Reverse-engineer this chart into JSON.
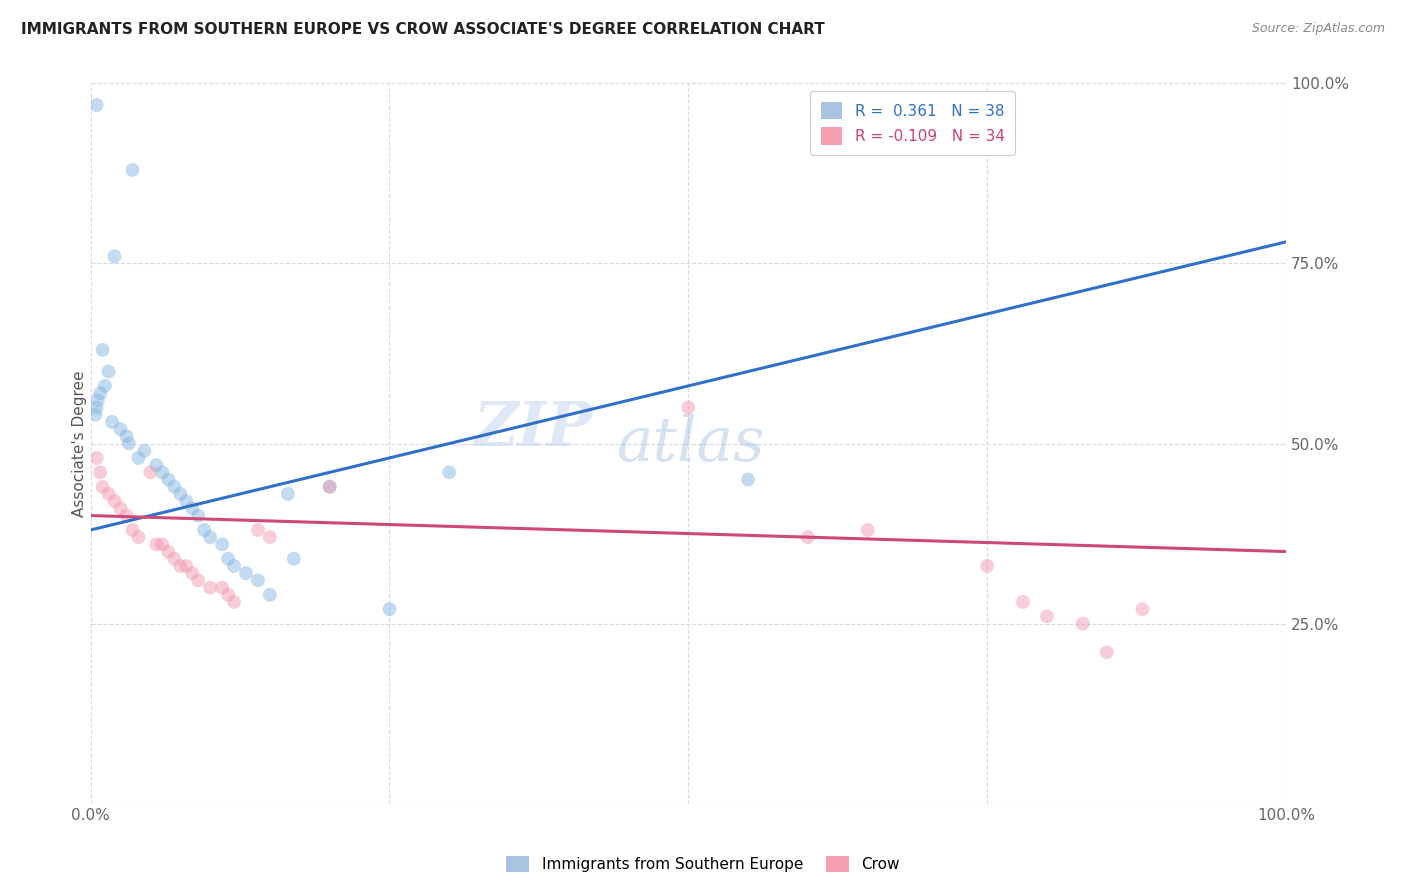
{
  "title": "IMMIGRANTS FROM SOUTHERN EUROPE VS CROW ASSOCIATE'S DEGREE CORRELATION CHART",
  "source": "Source: ZipAtlas.com",
  "ylabel": "Associate's Degree",
  "xlim": [
    0,
    100
  ],
  "ylim": [
    0,
    100
  ],
  "xticks": [
    0,
    25,
    50,
    75,
    100
  ],
  "yticks": [
    0,
    25,
    50,
    75,
    100
  ],
  "xticklabels": [
    "0.0%",
    "",
    "",
    "",
    "100.0%"
  ],
  "yticklabels": [
    "",
    "25.0%",
    "50.0%",
    "75.0%",
    "100.0%"
  ],
  "legend_items": [
    {
      "label": "R =  0.361   N = 38",
      "color": "#a8c4e0",
      "line_color": "#3070c8"
    },
    {
      "label": "R = -0.109   N = 34",
      "color": "#f4a0b0",
      "line_color": "#d04070"
    }
  ],
  "blue_dots": [
    [
      0.5,
      97
    ],
    [
      3.5,
      88
    ],
    [
      2.0,
      76
    ],
    [
      1.0,
      63
    ],
    [
      1.5,
      60
    ],
    [
      1.2,
      58
    ],
    [
      0.8,
      57
    ],
    [
      0.6,
      56
    ],
    [
      0.5,
      55
    ],
    [
      0.4,
      54
    ],
    [
      1.8,
      53
    ],
    [
      2.5,
      52
    ],
    [
      3.0,
      51
    ],
    [
      3.2,
      50
    ],
    [
      4.5,
      49
    ],
    [
      4.0,
      48
    ],
    [
      5.5,
      47
    ],
    [
      6.0,
      46
    ],
    [
      6.5,
      45
    ],
    [
      7.0,
      44
    ],
    [
      7.5,
      43
    ],
    [
      8.0,
      42
    ],
    [
      8.5,
      41
    ],
    [
      9.0,
      40
    ],
    [
      9.5,
      38
    ],
    [
      10.0,
      37
    ],
    [
      11.0,
      36
    ],
    [
      11.5,
      34
    ],
    [
      12.0,
      33
    ],
    [
      13.0,
      32
    ],
    [
      14.0,
      31
    ],
    [
      15.0,
      29
    ],
    [
      16.5,
      43
    ],
    [
      20.0,
      44
    ],
    [
      30.0,
      46
    ],
    [
      55.0,
      45
    ],
    [
      17.0,
      34
    ],
    [
      25.0,
      27
    ]
  ],
  "pink_dots": [
    [
      0.5,
      48
    ],
    [
      0.8,
      46
    ],
    [
      1.0,
      44
    ],
    [
      1.5,
      43
    ],
    [
      2.0,
      42
    ],
    [
      2.5,
      41
    ],
    [
      3.0,
      40
    ],
    [
      3.5,
      38
    ],
    [
      4.0,
      37
    ],
    [
      5.0,
      46
    ],
    [
      5.5,
      36
    ],
    [
      6.0,
      36
    ],
    [
      6.5,
      35
    ],
    [
      7.0,
      34
    ],
    [
      7.5,
      33
    ],
    [
      8.0,
      33
    ],
    [
      8.5,
      32
    ],
    [
      9.0,
      31
    ],
    [
      10.0,
      30
    ],
    [
      11.0,
      30
    ],
    [
      11.5,
      29
    ],
    [
      12.0,
      28
    ],
    [
      14.0,
      38
    ],
    [
      15.0,
      37
    ],
    [
      20.0,
      44
    ],
    [
      50.0,
      55
    ],
    [
      60.0,
      37
    ],
    [
      65.0,
      38
    ],
    [
      75.0,
      33
    ],
    [
      78.0,
      28
    ],
    [
      80.0,
      26
    ],
    [
      83.0,
      25
    ],
    [
      85.0,
      21
    ],
    [
      88.0,
      27
    ]
  ],
  "blue_line": {
    "x0": 0,
    "y0": 38.0,
    "x1": 100,
    "y1": 78.0
  },
  "pink_line": {
    "x0": 0,
    "y0": 40.0,
    "x1": 100,
    "y1": 35.0
  },
  "watermark_zip": "ZIP",
  "watermark_atlas": "atlas",
  "dot_size": 100,
  "dot_alpha": 0.45,
  "line_width": 2.2,
  "blue_dot_color": "#7ab0de",
  "pink_dot_color": "#f090a8",
  "blue_line_color": "#3070c8",
  "pink_line_color": "#d04878",
  "grid_color": "#d8d8e8",
  "background_color": "#ffffff",
  "bottom_legend_labels": [
    "Immigrants from Southern Europe",
    "Crow"
  ]
}
